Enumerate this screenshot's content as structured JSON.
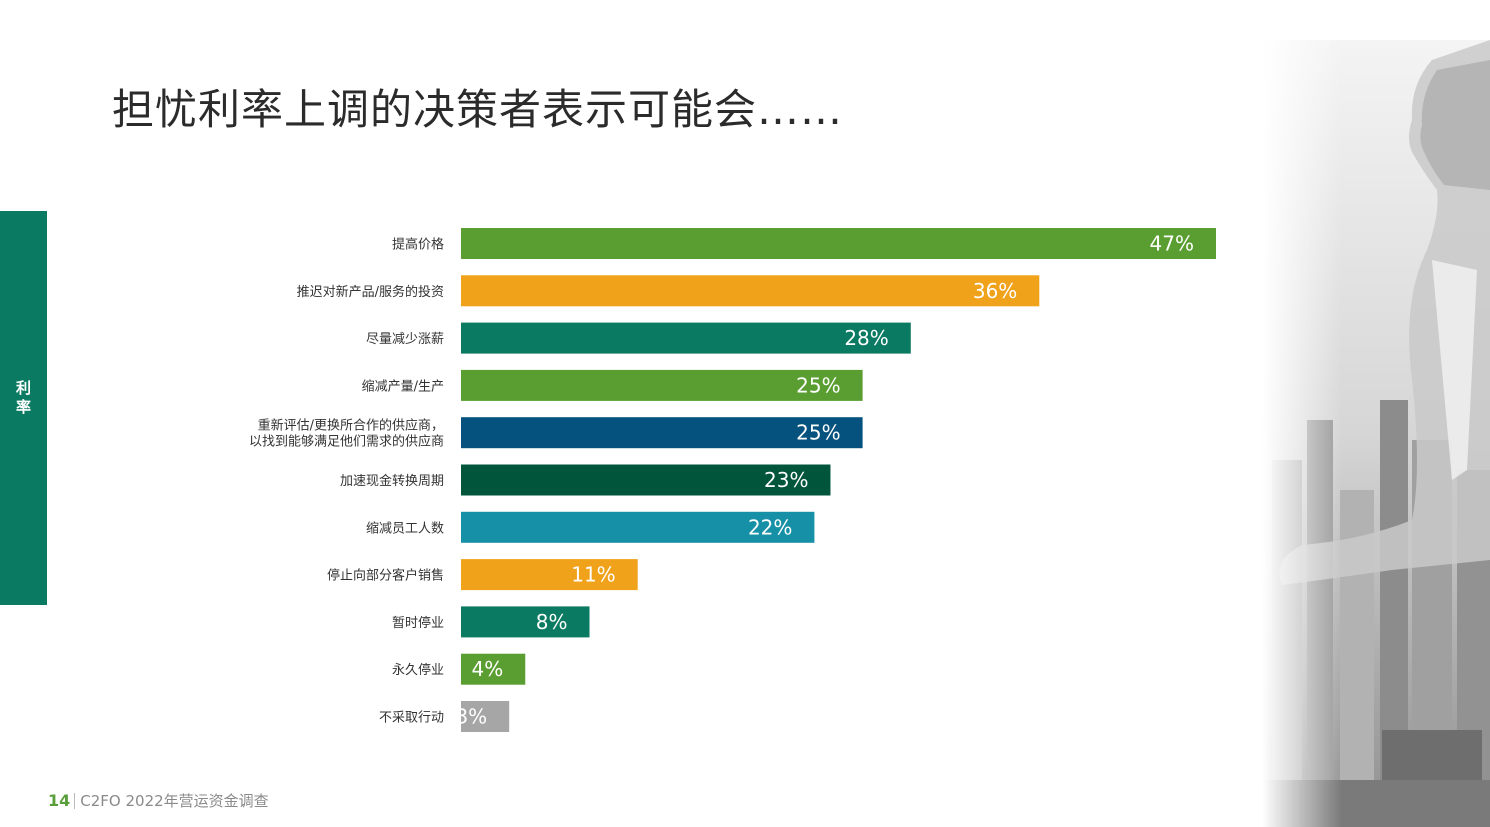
{
  "title": "担忧利率上调的决策者表示可能会……",
  "side_tab": {
    "label": "利率"
  },
  "footer": {
    "page": "14",
    "text": "C2FO 2022年营运资金调查"
  },
  "chart_data": {
    "type": "bar",
    "orientation": "horizontal",
    "categories": [
      [
        "提高价格"
      ],
      [
        "推迟对新产品/服务的投资"
      ],
      [
        "尽量减少涨薪"
      ],
      [
        "缩减产量/生产"
      ],
      [
        "重新评估/更换所合作的供应商，",
        "以找到能够满足他们需求的供应商"
      ],
      [
        "加速现金转换周期"
      ],
      [
        "缩减员工人数"
      ],
      [
        "停止向部分客户销售"
      ],
      [
        "暂时停业"
      ],
      [
        "永久停业"
      ],
      [
        "不采取行动"
      ]
    ],
    "values": [
      47,
      36,
      28,
      25,
      25,
      23,
      22,
      11,
      8,
      4,
      3
    ],
    "value_labels": [
      "47%",
      "36%",
      "28%",
      "25%",
      "25%",
      "23%",
      "22%",
      "11%",
      "8%",
      "4%",
      "3%"
    ],
    "colors": [
      "#5a9e32",
      "#f0a21b",
      "#0a7a62",
      "#5a9e32",
      "#04527d",
      "#00553a",
      "#1690a6",
      "#f0a21b",
      "#0a7a62",
      "#5a9e32",
      "#a6a6a6"
    ],
    "xlim": [
      0,
      47
    ],
    "grid": false,
    "legend": "none"
  }
}
